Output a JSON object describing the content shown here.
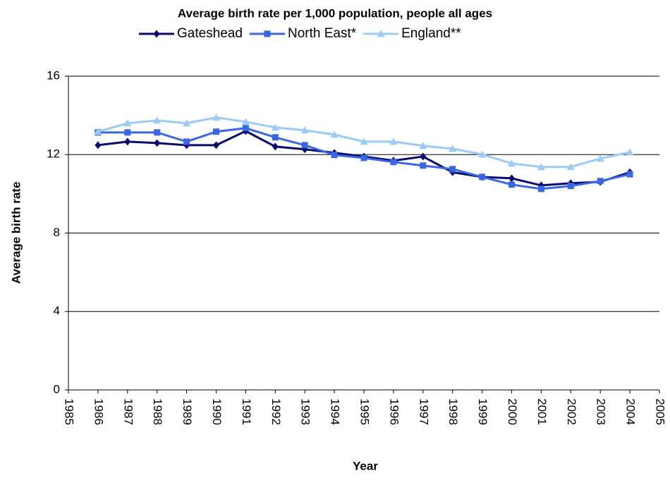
{
  "chart_data": {
    "type": "line",
    "title": "Average birth rate per 1,000 population, people all ages",
    "x_label": "Year",
    "y_label": "Average birth rate",
    "x": [
      1986,
      1987,
      1988,
      1989,
      1990,
      1991,
      1992,
      1993,
      1994,
      1995,
      1996,
      1997,
      1998,
      1999,
      2000,
      2001,
      2002,
      2003,
      2004
    ],
    "series": [
      {
        "name": "Gateshead",
        "color": "#0a0a6e",
        "marker": "diamond",
        "values": [
          12.48,
          12.66,
          12.59,
          12.48,
          12.48,
          13.2,
          12.41,
          12.27,
          12.09,
          11.9,
          11.69,
          11.9,
          11.1,
          10.86,
          10.79,
          10.43,
          10.54,
          10.61,
          11.1
        ]
      },
      {
        "name": "North East*",
        "color": "#3a66e0",
        "marker": "square",
        "values": [
          13.13,
          13.13,
          13.13,
          12.66,
          13.17,
          13.35,
          12.88,
          12.48,
          11.98,
          11.83,
          11.62,
          11.44,
          11.26,
          10.86,
          10.47,
          10.25,
          10.4,
          10.65,
          11.0
        ]
      },
      {
        "name": "England**",
        "color": "#9ccaf4",
        "marker": "triangle",
        "values": [
          13.17,
          13.6,
          13.74,
          13.6,
          13.89,
          13.67,
          13.38,
          13.24,
          13.02,
          12.66,
          12.66,
          12.45,
          12.3,
          12.01,
          11.55,
          11.37,
          11.37,
          11.8,
          12.12
        ]
      }
    ],
    "xlim": [
      1985,
      2005
    ],
    "xticks": [
      1985,
      1986,
      1987,
      1988,
      1989,
      1990,
      1991,
      1992,
      1993,
      1994,
      1995,
      1996,
      1997,
      1998,
      1999,
      2000,
      2001,
      2002,
      2003,
      2004,
      2005
    ],
    "ylim": [
      0,
      16
    ],
    "yticks": [
      0,
      4,
      8,
      12,
      16
    ],
    "grid": true,
    "legend": "top"
  }
}
